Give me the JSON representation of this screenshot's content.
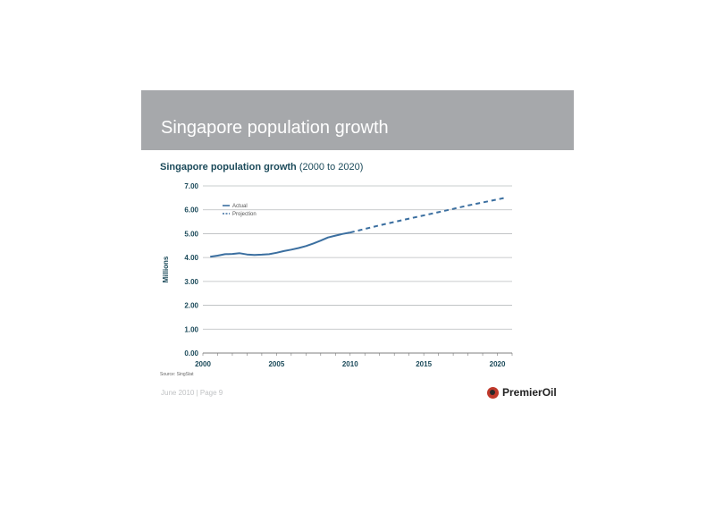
{
  "slide": {
    "banner_title": "Singapore population growth",
    "chart_title_bold": "Singapore population growth",
    "chart_title_rest": " (2000 to 2020)",
    "source": "Source: SingStat",
    "footer": "June 2010 | Page 9",
    "logo_text": "PremierOil",
    "colors": {
      "banner": "#a6a8ab",
      "line": "#3b6fa0",
      "axis_text": "#1b4a5a"
    }
  },
  "chart_data": {
    "type": "line",
    "xlabel": "",
    "ylabel": "Millions",
    "xlim": [
      2000,
      2021
    ],
    "ylim": [
      0,
      7
    ],
    "yticks": [
      "0.00",
      "1.00",
      "2.00",
      "3.00",
      "4.00",
      "5.00",
      "6.00",
      "7.00"
    ],
    "xticks": [
      "2000",
      "2005",
      "2010",
      "2015",
      "2020"
    ],
    "grid": true,
    "legend": "top-left",
    "series": [
      {
        "name": "Actual",
        "style": "solid",
        "x": [
          2000.5,
          2001,
          2001.5,
          2002,
          2002.5,
          2003,
          2003.5,
          2004,
          2004.5,
          2005,
          2005.5,
          2006,
          2006.5,
          2007,
          2007.5,
          2008,
          2008.5,
          2009,
          2009.5,
          2010
        ],
        "y": [
          4.03,
          4.08,
          4.14,
          4.15,
          4.18,
          4.13,
          4.11,
          4.12,
          4.14,
          4.2,
          4.27,
          4.33,
          4.4,
          4.48,
          4.59,
          4.71,
          4.84,
          4.92,
          4.99,
          5.05
        ]
      },
      {
        "name": "Projection",
        "style": "dashed",
        "x": [
          2010,
          2012,
          2014,
          2016,
          2018,
          2020.5
        ],
        "y": [
          5.05,
          5.35,
          5.63,
          5.9,
          6.18,
          6.5
        ]
      }
    ]
  }
}
